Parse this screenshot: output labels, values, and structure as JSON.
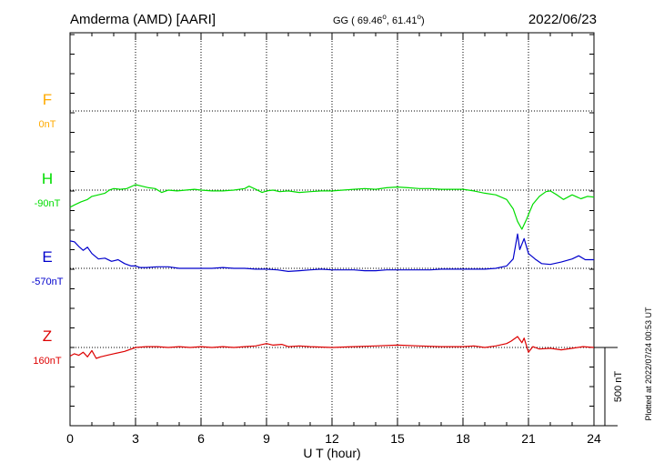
{
  "header": {
    "station": "Amderma (AMD)  [AARI]",
    "coords_prefix": "GG ( 69.46",
    "coords_mid": ",  61.41",
    "coords_suffix": ")",
    "degree_mark": "o",
    "date": "2022/06/23"
  },
  "footer": {
    "xlabel": "U T (hour)",
    "scale_label": "500 nT",
    "plotted": "Plotted at 2022/07/24 00:53 UT"
  },
  "colors": {
    "F": "#ffaa00",
    "H": "#00dd00",
    "E": "#0000cc",
    "Z": "#dd0000",
    "grid": "#000000"
  },
  "chart_data": {
    "type": "line",
    "xlim": [
      0,
      24
    ],
    "xticks": [
      "0",
      "3",
      "6",
      "9",
      "12",
      "15",
      "18",
      "21",
      "24"
    ],
    "scale_bar_nT": 500,
    "series": [
      {
        "name": "F",
        "baseline_label": "0nT",
        "values": []
      },
      {
        "name": "H",
        "baseline_label": "-90nT",
        "values": [
          [
            0.0,
            -110
          ],
          [
            0.2,
            -95
          ],
          [
            0.5,
            -75
          ],
          [
            0.8,
            -60
          ],
          [
            1.0,
            -40
          ],
          [
            1.3,
            -30
          ],
          [
            1.6,
            -20
          ],
          [
            1.8,
            0
          ],
          [
            2.0,
            10
          ],
          [
            2.3,
            5
          ],
          [
            2.6,
            10
          ],
          [
            3.0,
            35
          ],
          [
            3.3,
            25
          ],
          [
            3.6,
            15
          ],
          [
            3.9,
            10
          ],
          [
            4.2,
            -15
          ],
          [
            4.5,
            0
          ],
          [
            4.9,
            -5
          ],
          [
            5.3,
            0
          ],
          [
            5.7,
            5
          ],
          [
            6.0,
            0
          ],
          [
            6.5,
            -5
          ],
          [
            7.0,
            -5
          ],
          [
            7.5,
            0
          ],
          [
            8.0,
            10
          ],
          [
            8.2,
            25
          ],
          [
            8.5,
            5
          ],
          [
            8.8,
            -15
          ],
          [
            9.0,
            -5
          ],
          [
            9.3,
            0
          ],
          [
            9.6,
            -10
          ],
          [
            10.0,
            -5
          ],
          [
            10.5,
            -15
          ],
          [
            11.0,
            -10
          ],
          [
            11.5,
            -5
          ],
          [
            12.0,
            -5
          ],
          [
            12.5,
            0
          ],
          [
            13.0,
            5
          ],
          [
            13.5,
            10
          ],
          [
            14.0,
            5
          ],
          [
            14.5,
            15
          ],
          [
            15.0,
            20
          ],
          [
            15.5,
            15
          ],
          [
            16.0,
            10
          ],
          [
            16.5,
            10
          ],
          [
            17.0,
            5
          ],
          [
            17.5,
            5
          ],
          [
            18.0,
            5
          ],
          [
            18.5,
            -5
          ],
          [
            19.0,
            -20
          ],
          [
            19.5,
            -30
          ],
          [
            20.0,
            -60
          ],
          [
            20.3,
            -120
          ],
          [
            20.5,
            -200
          ],
          [
            20.7,
            -250
          ],
          [
            20.9,
            -190
          ],
          [
            21.2,
            -90
          ],
          [
            21.5,
            -40
          ],
          [
            21.8,
            -10
          ],
          [
            22.0,
            -5
          ],
          [
            22.3,
            -30
          ],
          [
            22.6,
            -60
          ],
          [
            23.0,
            -30
          ],
          [
            23.4,
            -55
          ],
          [
            23.7,
            -40
          ],
          [
            24.0,
            -45
          ]
        ]
      },
      {
        "name": "E",
        "baseline_label": "-570nT",
        "values": [
          [
            0.0,
            175
          ],
          [
            0.2,
            170
          ],
          [
            0.4,
            140
          ],
          [
            0.6,
            115
          ],
          [
            0.8,
            135
          ],
          [
            1.0,
            95
          ],
          [
            1.3,
            60
          ],
          [
            1.6,
            65
          ],
          [
            1.9,
            45
          ],
          [
            2.2,
            55
          ],
          [
            2.5,
            30
          ],
          [
            2.8,
            15
          ],
          [
            3.0,
            15
          ],
          [
            3.2,
            5
          ],
          [
            3.5,
            5
          ],
          [
            4.0,
            10
          ],
          [
            4.5,
            10
          ],
          [
            5.0,
            0
          ],
          [
            5.5,
            0
          ],
          [
            6.0,
            0
          ],
          [
            6.5,
            0
          ],
          [
            7.0,
            5
          ],
          [
            7.5,
            0
          ],
          [
            8.0,
            0
          ],
          [
            8.5,
            -5
          ],
          [
            9.0,
            -5
          ],
          [
            9.5,
            -10
          ],
          [
            10.0,
            -20
          ],
          [
            10.5,
            -15
          ],
          [
            11.0,
            -10
          ],
          [
            11.5,
            -5
          ],
          [
            12.0,
            -10
          ],
          [
            12.5,
            -10
          ],
          [
            13.0,
            -10
          ],
          [
            13.5,
            -15
          ],
          [
            14.0,
            -15
          ],
          [
            14.5,
            -10
          ],
          [
            15.0,
            -10
          ],
          [
            15.5,
            -10
          ],
          [
            16.0,
            -10
          ],
          [
            16.5,
            -10
          ],
          [
            17.0,
            -5
          ],
          [
            17.5,
            -5
          ],
          [
            18.0,
            -5
          ],
          [
            18.5,
            -5
          ],
          [
            19.0,
            -5
          ],
          [
            19.5,
            0
          ],
          [
            20.0,
            15
          ],
          [
            20.3,
            60
          ],
          [
            20.5,
            220
          ],
          [
            20.6,
            120
          ],
          [
            20.8,
            190
          ],
          [
            21.0,
            95
          ],
          [
            21.3,
            60
          ],
          [
            21.6,
            30
          ],
          [
            22.0,
            25
          ],
          [
            22.5,
            40
          ],
          [
            23.0,
            60
          ],
          [
            23.3,
            80
          ],
          [
            23.6,
            55
          ],
          [
            24.0,
            55
          ]
        ]
      },
      {
        "name": "Z",
        "baseline_label": "160nT",
        "values": [
          [
            0.0,
            -55
          ],
          [
            0.2,
            -40
          ],
          [
            0.4,
            -50
          ],
          [
            0.6,
            -30
          ],
          [
            0.8,
            -60
          ],
          [
            1.0,
            -20
          ],
          [
            1.2,
            -70
          ],
          [
            1.4,
            -60
          ],
          [
            1.7,
            -50
          ],
          [
            2.0,
            -40
          ],
          [
            2.5,
            -25
          ],
          [
            3.0,
            0
          ],
          [
            3.5,
            5
          ],
          [
            4.0,
            5
          ],
          [
            4.5,
            0
          ],
          [
            5.0,
            5
          ],
          [
            5.5,
            0
          ],
          [
            6.0,
            5
          ],
          [
            6.5,
            0
          ],
          [
            7.0,
            5
          ],
          [
            7.5,
            0
          ],
          [
            8.0,
            5
          ],
          [
            8.5,
            10
          ],
          [
            9.0,
            25
          ],
          [
            9.3,
            15
          ],
          [
            9.7,
            20
          ],
          [
            10.0,
            5
          ],
          [
            10.5,
            10
          ],
          [
            11.0,
            5
          ],
          [
            12.0,
            0
          ],
          [
            13.0,
            5
          ],
          [
            14.0,
            10
          ],
          [
            15.0,
            15
          ],
          [
            16.0,
            10
          ],
          [
            17.0,
            5
          ],
          [
            18.0,
            5
          ],
          [
            18.5,
            10
          ],
          [
            19.0,
            0
          ],
          [
            19.5,
            10
          ],
          [
            20.0,
            25
          ],
          [
            20.2,
            40
          ],
          [
            20.5,
            70
          ],
          [
            20.7,
            30
          ],
          [
            20.8,
            60
          ],
          [
            21.0,
            -30
          ],
          [
            21.2,
            5
          ],
          [
            21.5,
            -10
          ],
          [
            22.0,
            -5
          ],
          [
            22.5,
            -15
          ],
          [
            23.0,
            -5
          ],
          [
            23.5,
            5
          ],
          [
            24.0,
            0
          ]
        ]
      }
    ]
  }
}
